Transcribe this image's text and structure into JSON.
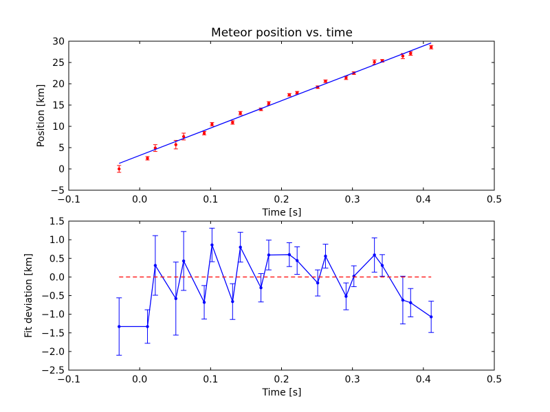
{
  "chart_data": [
    {
      "type": "scatter",
      "title": "Meteor position vs. time",
      "xlabel": "Time [s]",
      "ylabel": "Position [km]",
      "xlim": [
        -0.1,
        0.5
      ],
      "ylim": [
        -5,
        30
      ],
      "xticks": [
        "−0.1",
        "0.0",
        "0.1",
        "0.2",
        "0.3",
        "0.4",
        "0.5"
      ],
      "yticks": [
        "−5",
        "0",
        "5",
        "10",
        "15",
        "20",
        "25",
        "30"
      ],
      "grid": false,
      "colors": {
        "points": "#ff0000",
        "fit_line": "#0000ff"
      },
      "series": [
        {
          "kind": "points_with_errorbars",
          "x": [
            -0.029,
            0.011,
            0.022,
            0.051,
            0.062,
            0.091,
            0.102,
            0.131,
            0.142,
            0.171,
            0.182,
            0.211,
            0.222,
            0.251,
            0.262,
            0.291,
            0.302,
            0.331,
            0.342,
            0.371,
            0.382,
            0.411
          ],
          "y": [
            0.0,
            2.5,
            4.9,
            5.7,
            7.6,
            8.4,
            10.5,
            10.9,
            13.1,
            14.0,
            15.4,
            17.4,
            17.9,
            19.2,
            20.6,
            21.4,
            22.5,
            25.1,
            25.4,
            26.5,
            27.1,
            28.6
          ],
          "yerr": [
            0.8,
            0.4,
            0.8,
            1.0,
            0.8,
            0.4,
            0.4,
            0.4,
            0.4,
            0.3,
            0.4,
            0.3,
            0.3,
            0.3,
            0.3,
            0.4,
            0.3,
            0.5,
            0.3,
            0.6,
            0.4,
            0.4
          ]
        },
        {
          "kind": "fit_line",
          "x": [
            -0.029,
            0.411
          ],
          "y": [
            1.3,
            29.6
          ]
        }
      ]
    },
    {
      "type": "line",
      "title": "",
      "xlabel": "Time [s]",
      "ylabel": "Fit deviation [km]",
      "xlim": [
        -0.1,
        0.5
      ],
      "ylim": [
        -2.5,
        1.5
      ],
      "xticks": [
        "−0.1",
        "0.0",
        "0.1",
        "0.2",
        "0.3",
        "0.4",
        "0.5"
      ],
      "yticks": [
        "−2.5",
        "−2.0",
        "−1.5",
        "−1.0",
        "−0.5",
        "0.0",
        "0.5",
        "1.0",
        "1.5"
      ],
      "grid": false,
      "colors": {
        "deviation": "#0000ff",
        "zero_line": "#ff0000"
      },
      "series": [
        {
          "kind": "line_with_errorbars",
          "x": [
            -0.029,
            0.011,
            0.022,
            0.051,
            0.062,
            0.091,
            0.102,
            0.131,
            0.142,
            0.171,
            0.182,
            0.211,
            0.222,
            0.251,
            0.262,
            0.291,
            0.302,
            0.331,
            0.342,
            0.371,
            0.382,
            0.411
          ],
          "y": [
            -1.33,
            -1.33,
            0.31,
            -0.58,
            0.43,
            -0.68,
            0.86,
            -0.66,
            0.8,
            -0.29,
            0.59,
            0.6,
            0.44,
            -0.16,
            0.56,
            -0.52,
            0.02,
            0.59,
            0.31,
            -0.62,
            -0.69,
            -1.07
          ],
          "yerr": [
            0.77,
            0.45,
            0.8,
            0.98,
            0.79,
            0.45,
            0.45,
            0.48,
            0.4,
            0.38,
            0.4,
            0.32,
            0.37,
            0.35,
            0.32,
            0.36,
            0.28,
            0.46,
            0.29,
            0.64,
            0.38,
            0.42
          ]
        },
        {
          "kind": "zero_reference",
          "style": "dashed",
          "x": [
            -0.029,
            0.411
          ],
          "y": [
            0,
            0
          ]
        }
      ]
    }
  ]
}
